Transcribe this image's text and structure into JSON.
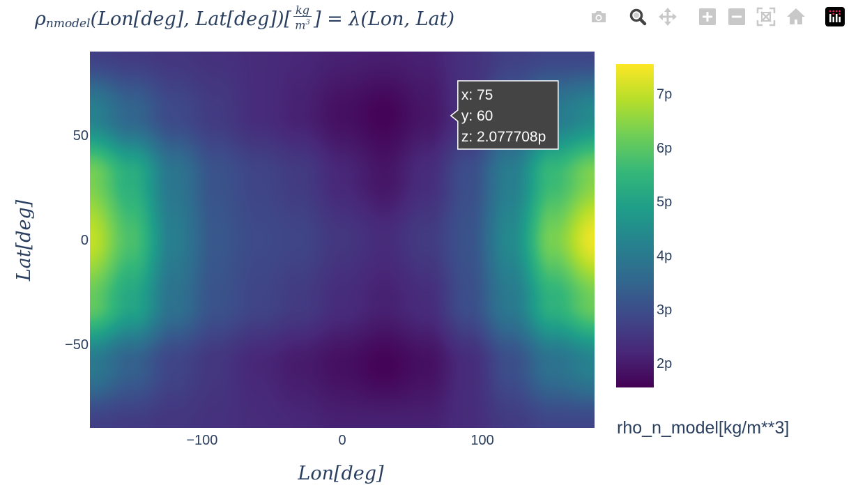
{
  "toolbar": {
    "icons": [
      "camera-icon",
      "zoom-icon",
      "pan-icon",
      "zoom-in-icon",
      "zoom-out-icon",
      "autoscale-icon",
      "reset-axes-icon",
      "plotly-logo-icon"
    ],
    "labels": [
      "Download plot as a png",
      "Zoom",
      "Pan",
      "Zoom in",
      "Zoom out",
      "Autoscale",
      "Reset axes",
      "Produced with Plotly"
    ],
    "active": "Zoom"
  },
  "chart_data": {
    "type": "heatmap",
    "title_parts": {
      "rho": "ρ",
      "sub": "nmodel",
      "args": "(Lon[deg], Lat[deg])[",
      "frac_num": "kg",
      "frac_den_base": "m",
      "frac_den_exp": "3",
      "rhs": "] = λ(Lon, Lat)"
    },
    "xlabel": "Lon[deg]",
    "ylabel": "Lat[deg]",
    "xlim": [
      -180,
      180
    ],
    "ylim": [
      -90,
      90
    ],
    "x_ticks": [
      -100,
      0,
      100
    ],
    "x_tick_labels": [
      "−100",
      "0",
      "100"
    ],
    "y_ticks": [
      50,
      0,
      -50
    ],
    "y_tick_labels": [
      "50",
      "0",
      "−50"
    ],
    "colorscale": "Viridis",
    "colors": [
      "#440154",
      "#482878",
      "#3e4989",
      "#31688e",
      "#26828e",
      "#1f9e89",
      "#35b779",
      "#6ece58",
      "#b5de2b",
      "#fde725"
    ],
    "zlim": [
      1.55,
      7.55
    ],
    "colorbar": {
      "title": "rho_n_model[kg/m**3]",
      "ticks": [
        7,
        6,
        5,
        4,
        3,
        2
      ],
      "tick_labels": [
        "7p",
        "6p",
        "5p",
        "4p",
        "3p",
        "2p"
      ]
    },
    "z_unit": "p",
    "x": [
      -180,
      -150,
      -120,
      -90,
      -60,
      -30,
      0,
      30,
      60,
      90,
      120,
      150,
      180
    ],
    "y": [
      90,
      60,
      30,
      0,
      -30,
      -60,
      -90
    ],
    "z": [
      [
        2.7,
        2.6,
        2.5,
        2.4,
        2.3,
        2.2,
        2.1,
        2.05,
        2.1,
        2.4,
        2.7,
        2.8,
        2.8
      ],
      [
        4.2,
        3.5,
        2.9,
        2.6,
        2.3,
        2.1,
        1.8,
        1.6,
        1.9,
        2.4,
        3.2,
        4.0,
        4.4
      ],
      [
        6.3,
        5.3,
        3.9,
        3.1,
        2.8,
        2.6,
        2.2,
        1.9,
        2.3,
        3.0,
        4.1,
        5.6,
        6.4
      ],
      [
        7.0,
        5.8,
        4.1,
        3.2,
        2.9,
        2.8,
        2.5,
        2.3,
        2.6,
        3.1,
        4.4,
        6.3,
        7.4
      ],
      [
        6.1,
        5.1,
        3.8,
        3.1,
        2.8,
        2.6,
        2.3,
        2.1,
        2.3,
        3.0,
        4.0,
        5.4,
        6.2
      ],
      [
        4.0,
        3.4,
        2.8,
        2.5,
        2.2,
        2.0,
        1.8,
        1.6,
        1.8,
        2.3,
        3.0,
        3.8,
        4.2
      ],
      [
        2.7,
        2.6,
        2.5,
        2.4,
        2.3,
        2.2,
        2.1,
        2.1,
        2.1,
        2.3,
        2.6,
        2.8,
        2.8
      ]
    ],
    "hover": {
      "x_line": "x: 75",
      "y_line": "y: 60",
      "z_line": "z: 2.077708p",
      "x": 75,
      "y": 60
    }
  }
}
